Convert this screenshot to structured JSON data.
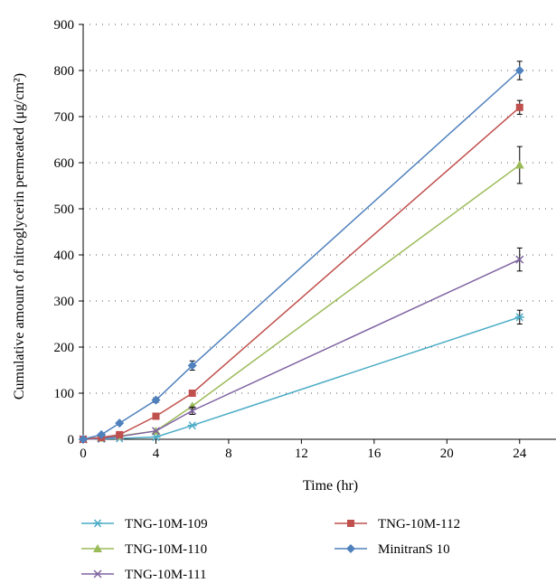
{
  "chart_data": {
    "type": "line",
    "xlabel": "Time (hr)",
    "ylabel": "Cumulative amount of nitroglycerin permeated (μg/cm²)",
    "xlim": [
      0,
      26
    ],
    "ylim": [
      0,
      900
    ],
    "x_ticks": [
      0,
      4,
      8,
      12,
      16,
      20,
      24
    ],
    "y_ticks": [
      0,
      100,
      200,
      300,
      400,
      500,
      600,
      700,
      800,
      900
    ],
    "grid": "horizontal-dotted",
    "legend_position": "bottom",
    "series": [
      {
        "name": "TNG-10M-109",
        "color": "#4bacc6",
        "marker": "star",
        "x": [
          0,
          1,
          2,
          4,
          6,
          24
        ],
        "y": [
          0,
          1,
          2,
          5,
          30,
          265
        ],
        "err": [
          0,
          0,
          0,
          0,
          0,
          15
        ]
      },
      {
        "name": "TNG-10M-110",
        "color": "#9bbb59",
        "marker": "triangle",
        "x": [
          0,
          1,
          2,
          4,
          6,
          24
        ],
        "y": [
          0,
          3,
          7,
          18,
          72,
          595
        ],
        "err": [
          0,
          0,
          0,
          0,
          0,
          40
        ]
      },
      {
        "name": "TNG-10M-111",
        "color": "#8064a2",
        "marker": "x",
        "x": [
          0,
          1,
          2,
          4,
          6,
          24
        ],
        "y": [
          0,
          2,
          6,
          18,
          62,
          390
        ],
        "err": [
          0,
          0,
          0,
          0,
          8,
          25
        ]
      },
      {
        "name": "TNG-10M-112",
        "color": "#c0504d",
        "marker": "square",
        "x": [
          0,
          1,
          2,
          4,
          6,
          24
        ],
        "y": [
          0,
          4,
          10,
          50,
          100,
          720
        ],
        "err": [
          0,
          0,
          0,
          0,
          0,
          15
        ]
      },
      {
        "name": "MinitranS 10",
        "color": "#4f81bd",
        "marker": "diamond",
        "x": [
          0,
          1,
          2,
          4,
          6,
          24
        ],
        "y": [
          0,
          10,
          35,
          85,
          160,
          800
        ],
        "err": [
          0,
          0,
          0,
          5,
          10,
          20
        ]
      }
    ]
  }
}
